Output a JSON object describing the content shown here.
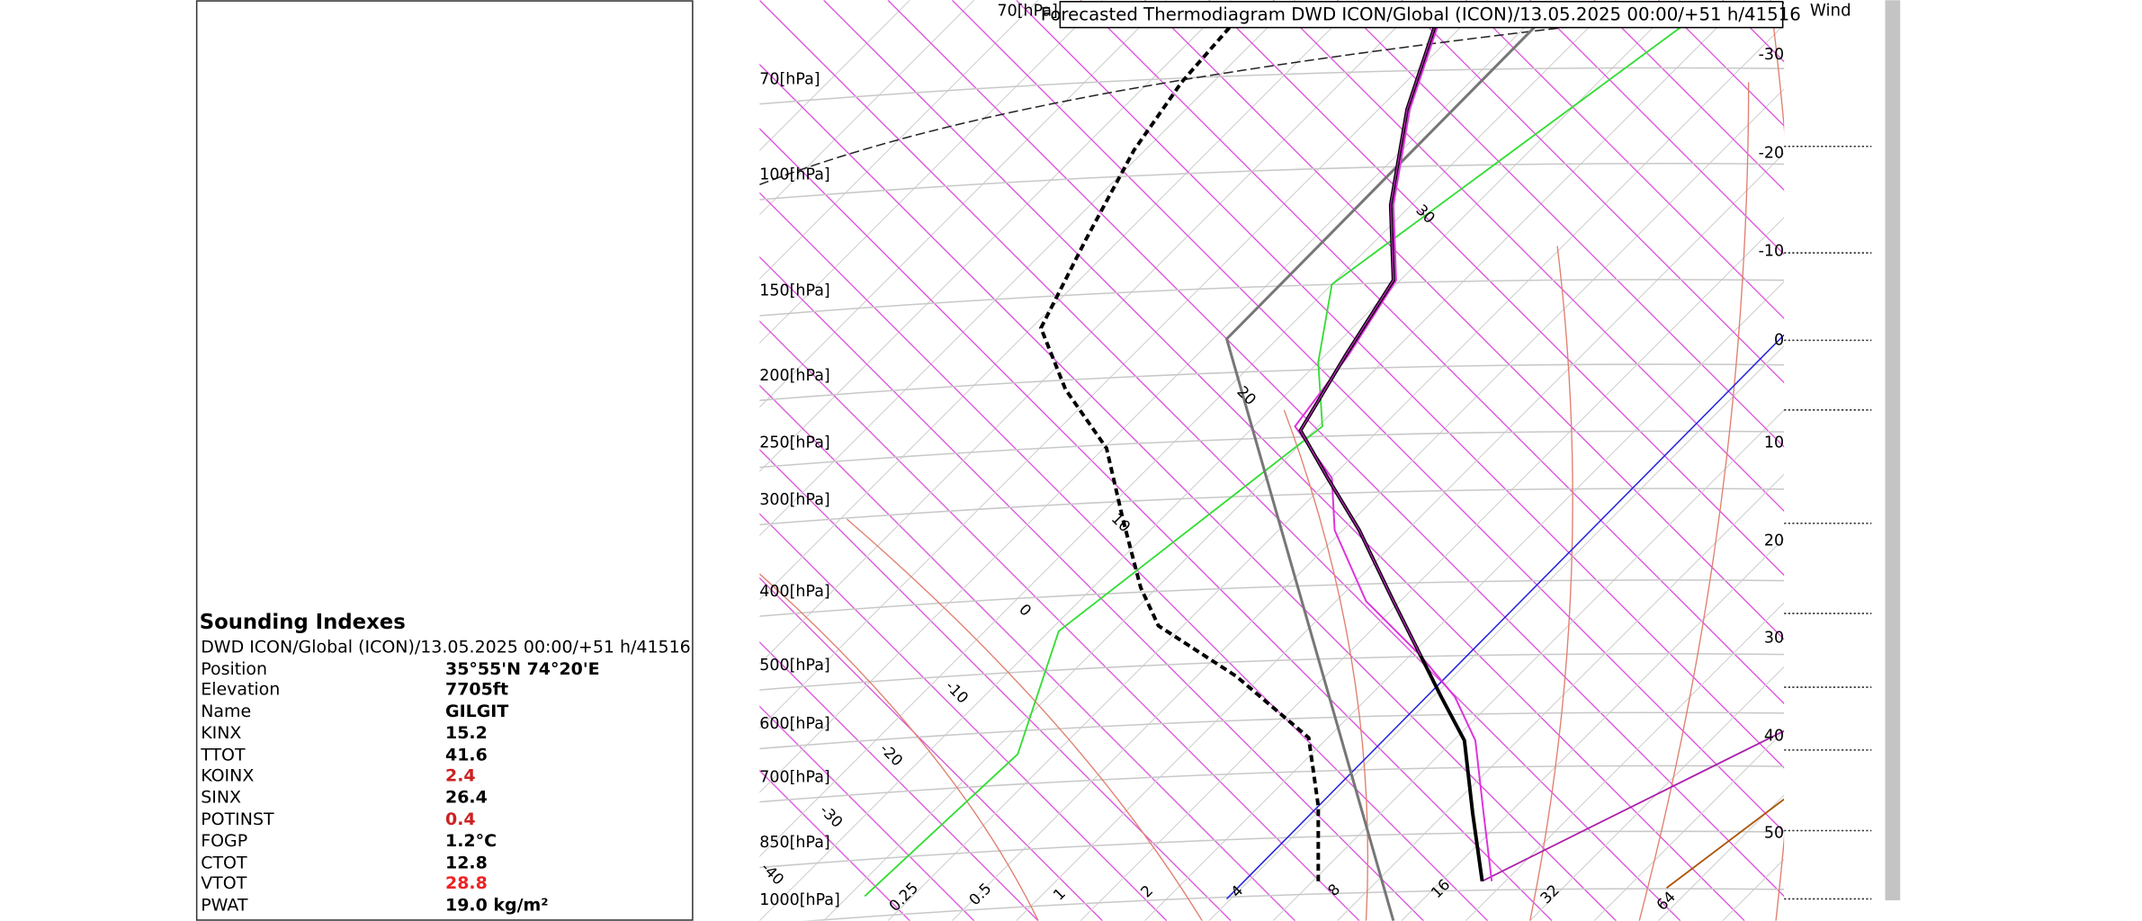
{
  "diagram": {
    "title": "Forecasted Thermodiagram DWD ICON/Global (ICON)/13.05.2025 00:00/+51 h/41516",
    "wind_label": "Wind",
    "top_label": "70[hPa]",
    "pressure_labels": [
      "70[hPa]",
      "100[hPa]",
      "150[hPa]",
      "200[hPa]",
      "250[hPa]",
      "300[hPa]",
      "400[hPa]",
      "500[hPa]",
      "600[hPa]",
      "700[hPa]",
      "850[hPa]",
      "1000[hPa]"
    ],
    "right_labels": [
      "-30",
      "-20",
      "-10",
      "0",
      "10",
      "20",
      "30",
      "40",
      "50"
    ],
    "mixing_ratio_labels": [
      "0.25",
      "0.5",
      "1",
      "2",
      "4",
      "8",
      "16",
      "32",
      "64"
    ],
    "isotherm_labels": [
      "30",
      "20",
      "10",
      "0",
      "-10",
      "-20",
      "-30",
      "-40"
    ]
  },
  "panel": {
    "title": "Sounding Indexes",
    "subtitle": "DWD ICON/Global (ICON)/13.05.2025 00:00/+51 h/41516",
    "rows": [
      {
        "label": "Position",
        "value": "35°55'N 74°20'E",
        "color": "#000000"
      },
      {
        "label": "Elevation",
        "value": "7705ft",
        "color": "#000000"
      },
      {
        "label": "Name",
        "value": "GILGIT",
        "color": "#000000"
      },
      {
        "label": "KINX",
        "value": "15.2",
        "color": "#000000"
      },
      {
        "label": "TTOT",
        "value": "41.6",
        "color": "#000000"
      },
      {
        "label": "KOINX",
        "value": "2.4",
        "color": "#cc2222"
      },
      {
        "label": "SINX",
        "value": "26.4",
        "color": "#000000"
      },
      {
        "label": "POTINST",
        "value": "0.4",
        "color": "#cc2222"
      },
      {
        "label": "FOGP",
        "value": "1.2°C",
        "color": "#000000"
      },
      {
        "label": "CTOT",
        "value": "12.8",
        "color": "#000000"
      },
      {
        "label": "VTOT",
        "value": "28.8",
        "color": "#ee2222"
      },
      {
        "label": "PWAT",
        "value": "19.0 kg/m²",
        "color": "#000000"
      }
    ]
  }
}
